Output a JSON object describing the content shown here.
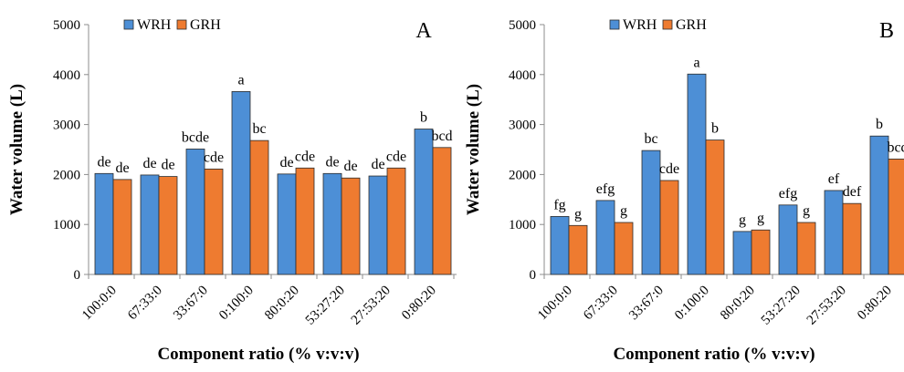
{
  "colors": {
    "WRH": "#4d8fd6",
    "GRH": "#ee7b30",
    "axis": "#8c8c8c",
    "bar_stroke": "#2b2b2b"
  },
  "chart_data": [
    {
      "type": "bar",
      "panel": "A",
      "categories": [
        "100:0:0",
        "67:33:0",
        "33:67:0",
        "0:100:0",
        "80:0:20",
        "53:27:20",
        "27:53:20",
        "0:80:20"
      ],
      "series": [
        {
          "name": "WRH",
          "values": [
            2020,
            1990,
            2510,
            3660,
            2010,
            2020,
            1970,
            2910
          ],
          "labels": [
            "de",
            "de",
            "bcde",
            "a",
            "de",
            "de",
            "de",
            "b"
          ]
        },
        {
          "name": "GRH",
          "values": [
            1900,
            1960,
            2110,
            2680,
            2130,
            1930,
            2130,
            2540
          ],
          "labels": [
            "de",
            "de",
            "cde",
            "bc",
            "cde",
            "de",
            "cde",
            "bcd"
          ]
        }
      ],
      "ylim": [
        0,
        5000
      ],
      "yticks": [
        "0",
        "1000",
        "2000",
        "3000",
        "4000",
        "5000"
      ],
      "ylabel": "Water volume (L)",
      "xlabel": "Component ratio (% v:v:v)",
      "legend": "top-left",
      "grid": false
    },
    {
      "type": "bar",
      "panel": "B",
      "categories": [
        "100:0:0",
        "67:33:0",
        "33:67:0",
        "0:100:0",
        "80:0:20",
        "53:27:20",
        "27:53:20",
        "0:80:20"
      ],
      "series": [
        {
          "name": "WRH",
          "values": [
            1160,
            1480,
            2480,
            4010,
            860,
            1390,
            1680,
            2770
          ],
          "labels": [
            "fg",
            "efg",
            "bc",
            "a",
            "g",
            "efg",
            "ef",
            "b"
          ]
        },
        {
          "name": "GRH",
          "values": [
            980,
            1040,
            1880,
            2690,
            890,
            1040,
            1420,
            2310
          ],
          "labels": [
            "g",
            "g",
            "cde",
            "b",
            "g",
            "g",
            "def",
            "bcd"
          ]
        }
      ],
      "ylim": [
        0,
        5000
      ],
      "yticks": [
        "0",
        "1000",
        "2000",
        "3000",
        "4000",
        "5000"
      ],
      "ylabel": "Water volume (L)",
      "xlabel": "Component ratio (% v:v:v)",
      "legend": "top-left",
      "grid": false
    }
  ]
}
